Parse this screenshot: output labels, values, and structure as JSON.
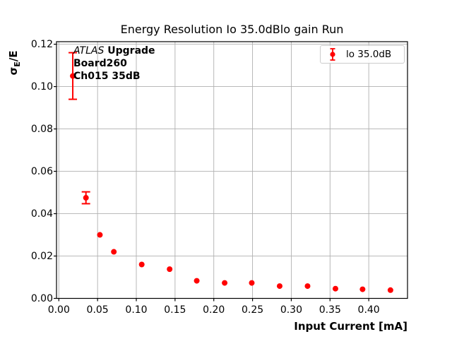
{
  "figure": {
    "title": "Energy Resolution Io 35.0dBlo gain Run",
    "xlabel": "Input Current [mA]",
    "ylabel": {
      "sigma": "σ",
      "sub": "E",
      "rest": "/E"
    },
    "background": "#ffffff"
  },
  "annotation": {
    "line1_italic": "ATLAS",
    "line1_bold": " Upgrade",
    "line2": "Board260",
    "line3": "Ch015 35dB"
  },
  "legend": {
    "label": "lo 35.0dB",
    "marker_color": "#ff0000"
  },
  "chart_data": {
    "type": "scatter",
    "title": "Energy Resolution Io 35.0dBlo gain Run",
    "xlabel": "Input Current [mA]",
    "ylabel": "σE/E",
    "grid": true,
    "legend_position": "upper right",
    "legend_entries": [
      "lo 35.0dB"
    ],
    "xlim": [
      -0.003,
      0.45
    ],
    "ylim": [
      0,
      0.1212
    ],
    "x_tick_values": [
      0,
      0.05,
      0.1,
      0.15,
      0.2,
      0.25,
      0.3,
      0.35,
      0.4
    ],
    "x_tick_labels": [
      "0.00",
      "0.05",
      "0.10",
      "0.15",
      "0.20",
      "0.25",
      "0.30",
      "0.35",
      "0.40"
    ],
    "y_tick_values": [
      0,
      0.02,
      0.04,
      0.06,
      0.08,
      0.1,
      0.12
    ],
    "y_tick_labels": [
      "0.00",
      "0.02",
      "0.04",
      "0.06",
      "0.08",
      "0.10",
      "0.12"
    ],
    "colors": {
      "marker": "#ff0000",
      "grid": "#b0b0b0",
      "spine": "#000000"
    },
    "series": [
      {
        "name": "lo 35.0dB",
        "color": "#ff0000",
        "marker": "circle",
        "points": [
          {
            "x": 0.018,
            "y": 0.105,
            "yerr": 0.011
          },
          {
            "x": 0.035,
            "y": 0.0475,
            "yerr": 0.0028
          },
          {
            "x": 0.053,
            "y": 0.03,
            "yerr": 0
          },
          {
            "x": 0.071,
            "y": 0.022,
            "yerr": 0
          },
          {
            "x": 0.107,
            "y": 0.016,
            "yerr": 0
          },
          {
            "x": 0.143,
            "y": 0.0138,
            "yerr": 0
          },
          {
            "x": 0.178,
            "y": 0.0083,
            "yerr": 0
          },
          {
            "x": 0.214,
            "y": 0.0073,
            "yerr": 0
          },
          {
            "x": 0.249,
            "y": 0.0073,
            "yerr": 0
          },
          {
            "x": 0.285,
            "y": 0.0058,
            "yerr": 0
          },
          {
            "x": 0.321,
            "y": 0.0058,
            "yerr": 0
          },
          {
            "x": 0.357,
            "y": 0.0046,
            "yerr": 0
          },
          {
            "x": 0.392,
            "y": 0.0043,
            "yerr": 0
          },
          {
            "x": 0.428,
            "y": 0.0039,
            "yerr": 0
          }
        ]
      }
    ]
  }
}
